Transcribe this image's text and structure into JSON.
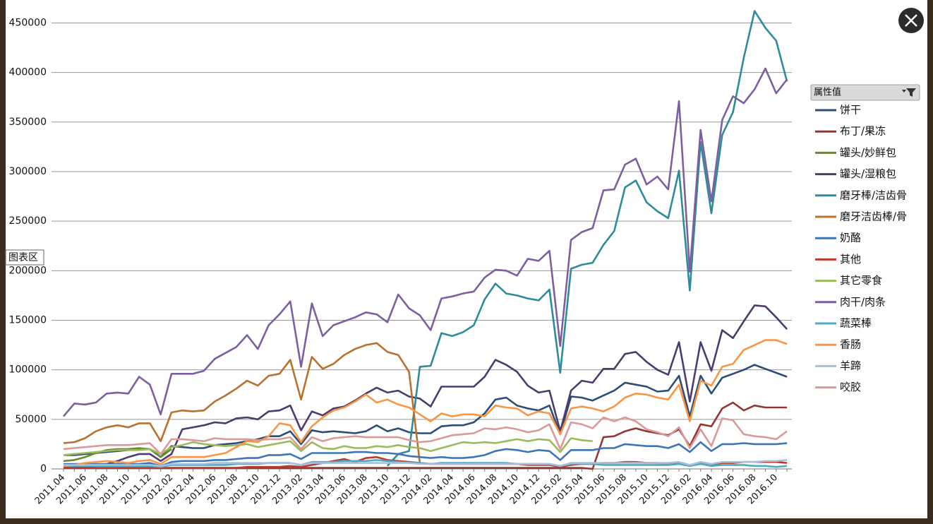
{
  "ui": {
    "legend_header": "属性值",
    "tooltip": "图表区"
  },
  "chart_data": {
    "type": "line",
    "categories": [
      "2011.04",
      null,
      "2011.06",
      null,
      "2011.08",
      null,
      "2011.10",
      null,
      "2011.12",
      null,
      "2012.02",
      null,
      "2012.04",
      null,
      "2012.06",
      null,
      "2012.08",
      null,
      "2012.10",
      null,
      "2012.12",
      null,
      "2013.02",
      null,
      "2013.04",
      null,
      "2013.06",
      null,
      "2013.08",
      null,
      "2013.10",
      null,
      "2013.12",
      null,
      "2014.02",
      null,
      "2014.04",
      null,
      "2014.06",
      null,
      "2014.08",
      null,
      "2014.10",
      null,
      "2014.12",
      null,
      "2015.02",
      null,
      "2015.04",
      null,
      "2015.06",
      null,
      "2015.08",
      null,
      "2015.10",
      null,
      "2015.12",
      null,
      "2016.02",
      null,
      "2016.04",
      null,
      "2016.06",
      null,
      "2016.08",
      null,
      "2016.10",
      null
    ],
    "ylim": [
      0,
      466000
    ],
    "yticks": [
      0,
      50000,
      100000,
      150000,
      200000,
      250000,
      300000,
      350000,
      400000,
      450000
    ],
    "grid": true,
    "legend": "right",
    "series": [
      {
        "name": "饼干",
        "color": "#2c4d75",
        "values": [
          14000,
          14000,
          15000,
          16000,
          17000,
          18000,
          19000,
          20000,
          20000,
          12000,
          23000,
          22000,
          21000,
          21000,
          24000,
          25000,
          26000,
          28000,
          30000,
          33000,
          33000,
          38000,
          25000,
          39000,
          37000,
          38000,
          37000,
          36000,
          38000,
          44000,
          38000,
          41000,
          37000,
          36000,
          36000,
          43000,
          44000,
          44000,
          47000,
          56000,
          70000,
          72000,
          64000,
          61000,
          59000,
          64000,
          35000,
          73000,
          72000,
          69000,
          74000,
          79000,
          87000,
          85000,
          83000,
          78000,
          79000,
          94000,
          53000,
          94000,
          76000,
          92000,
          96000,
          100000,
          105000,
          101000,
          97000,
          93000
        ]
      },
      {
        "name": "布丁/果冻",
        "color": "#943634",
        "values": [
          1000,
          1000,
          1000,
          1000,
          1000,
          1000,
          1000,
          1000,
          1000,
          1000,
          1000,
          1000,
          1000,
          1000,
          1000,
          1000,
          1000,
          1000,
          1000,
          1000,
          1000,
          1000,
          1000,
          1000,
          1000,
          1000,
          1000,
          1000,
          1000,
          1000,
          1000,
          1000,
          1000,
          1000,
          1000,
          1000,
          1000,
          1000,
          1000,
          1000,
          1000,
          1000,
          1000,
          1000,
          1000,
          1000,
          1000,
          1000,
          1000,
          0,
          32000,
          33000,
          38000,
          41000,
          38000,
          36000,
          34000,
          40000,
          23000,
          45000,
          43000,
          61000,
          67000,
          59000,
          64000,
          62000,
          62000,
          62000
        ]
      },
      {
        "name": "罐头/妙鲜包",
        "color": "#6a8a2c",
        "values": [
          8000,
          9000,
          12000,
          16000,
          19000,
          20000,
          20000,
          21000,
          20000,
          12000,
          20000,
          null,
          null,
          null,
          null,
          null,
          null,
          null,
          null,
          null,
          null,
          null,
          null,
          null,
          null,
          null,
          null,
          null,
          null,
          null,
          null,
          null,
          null,
          null,
          null,
          null,
          null,
          null,
          null,
          null,
          null,
          null,
          null,
          null,
          null,
          null,
          null,
          null,
          null,
          null,
          null,
          null,
          null,
          null,
          null,
          null,
          null,
          null,
          null,
          null,
          null,
          null,
          null,
          null,
          null,
          null,
          null,
          null
        ]
      },
      {
        "name": "罐头/湿粮包",
        "color": "#4d3b6e",
        "values": [
          1000,
          2000,
          2000,
          3000,
          5000,
          8000,
          12000,
          15000,
          15000,
          8000,
          15000,
          40000,
          42000,
          44000,
          47000,
          46000,
          51000,
          52000,
          50000,
          58000,
          59000,
          64000,
          39000,
          58000,
          54000,
          61000,
          63000,
          69000,
          76000,
          82000,
          77000,
          79000,
          73000,
          71000,
          63000,
          83000,
          83000,
          83000,
          83000,
          93000,
          110000,
          105000,
          98000,
          84000,
          77000,
          79000,
          38000,
          79000,
          89000,
          87000,
          101000,
          101000,
          116000,
          118000,
          108000,
          100000,
          95000,
          128000,
          68000,
          128000,
          99000,
          140000,
          132000,
          149000,
          165000,
          164000,
          153000,
          141000
        ]
      },
      {
        "name": "磨牙棒/洁齿骨",
        "color": "#2e8b9a",
        "values": [
          null,
          null,
          null,
          null,
          null,
          null,
          null,
          null,
          null,
          null,
          null,
          null,
          null,
          null,
          null,
          null,
          null,
          null,
          null,
          null,
          null,
          null,
          null,
          null,
          null,
          null,
          null,
          null,
          null,
          null,
          3000,
          15000,
          18000,
          103000,
          104000,
          137000,
          134000,
          138000,
          145000,
          171000,
          187000,
          177000,
          175000,
          172000,
          170000,
          181000,
          97000,
          202000,
          206000,
          208000,
          226000,
          240000,
          284000,
          291000,
          269000,
          260000,
          253000,
          301000,
          180000,
          330000,
          258000,
          337000,
          360000,
          415000,
          462000,
          445000,
          432000,
          391000
        ]
      },
      {
        "name": "磨牙洁齿棒/骨",
        "color": "#b8712f",
        "values": [
          26000,
          27000,
          31000,
          38000,
          42000,
          44000,
          42000,
          46000,
          46000,
          28000,
          57000,
          59000,
          58000,
          59000,
          68000,
          74000,
          81000,
          89000,
          84000,
          94000,
          96000,
          110000,
          70000,
          113000,
          101000,
          106000,
          115000,
          121000,
          125000,
          127000,
          118000,
          115000,
          98000,
          6000,
          null,
          null,
          null,
          null,
          null,
          null,
          null,
          null,
          null,
          null,
          null,
          null,
          null,
          null,
          null,
          null,
          null,
          null,
          null,
          null,
          null,
          null,
          null,
          null,
          null,
          null,
          null,
          null,
          null,
          null,
          null,
          null,
          null,
          null
        ]
      },
      {
        "name": "奶酪",
        "color": "#3c76b5",
        "values": [
          5000,
          5000,
          5000,
          5000,
          5000,
          5000,
          5000,
          5000,
          6000,
          3000,
          7000,
          8000,
          8000,
          8000,
          9000,
          9000,
          10000,
          11000,
          11000,
          14000,
          14000,
          15000,
          10000,
          16000,
          16000,
          16000,
          16000,
          17000,
          17000,
          16000,
          16000,
          15000,
          13000,
          12000,
          11000,
          12000,
          11000,
          11000,
          12000,
          14000,
          18000,
          20000,
          19000,
          17000,
          19000,
          18000,
          9000,
          19000,
          19000,
          19000,
          21000,
          21000,
          25000,
          24000,
          23000,
          23000,
          21000,
          25000,
          17000,
          27000,
          18000,
          25000,
          25000,
          26000,
          25000,
          25000,
          25000,
          26000
        ]
      },
      {
        "name": "其他",
        "color": "#c0392b",
        "values": [
          1000,
          1000,
          1000,
          1000,
          1000,
          1000,
          1000,
          1000,
          1000,
          1000,
          1000,
          1000,
          1000,
          1000,
          1000,
          1000,
          1000,
          2000,
          2000,
          2000,
          2000,
          3000,
          2000,
          4000,
          6000,
          8000,
          10000,
          7000,
          11000,
          12000,
          9000,
          8000,
          7000,
          6000,
          5000,
          5000,
          5000,
          5000,
          5000,
          5000,
          5000,
          5000,
          5000,
          4000,
          4000,
          4000,
          2000,
          4000,
          5000,
          5000,
          6000,
          6000,
          7000,
          7000,
          6000,
          6000,
          5000,
          6000,
          3000,
          6000,
          4000,
          6000,
          6000,
          7000,
          7000,
          7000,
          7000,
          6000
        ]
      },
      {
        "name": "其它零食",
        "color": "#9bbb59",
        "values": [
          14000,
          15000,
          16000,
          17000,
          18000,
          19000,
          19000,
          19000,
          20000,
          15000,
          22000,
          24000,
          27000,
          25000,
          24000,
          23000,
          24000,
          25000,
          22000,
          24000,
          26000,
          28000,
          18000,
          27000,
          21000,
          20000,
          23000,
          21000,
          21000,
          23000,
          22000,
          24000,
          22000,
          21000,
          18000,
          21000,
          24000,
          27000,
          26000,
          27000,
          26000,
          28000,
          30000,
          28000,
          30000,
          29000,
          17000,
          31000,
          29000,
          28000,
          null,
          null,
          null,
          null,
          null,
          null,
          null,
          null,
          null,
          null,
          null,
          null,
          null,
          null,
          null,
          null,
          null,
          null
        ]
      },
      {
        "name": "肉干/肉条",
        "color": "#7d5fa0",
        "values": [
          53000,
          66000,
          65000,
          67000,
          76000,
          77000,
          76000,
          93000,
          85000,
          55000,
          96000,
          96000,
          96000,
          99000,
          111000,
          117000,
          123000,
          135000,
          121000,
          145000,
          156000,
          169000,
          103000,
          167000,
          134000,
          145000,
          149000,
          153000,
          158000,
          156000,
          148000,
          176000,
          162000,
          155000,
          140000,
          172000,
          174000,
          177000,
          179000,
          193000,
          201000,
          200000,
          195000,
          212000,
          210000,
          220000,
          124000,
          231000,
          239000,
          243000,
          281000,
          282000,
          307000,
          313000,
          287000,
          295000,
          282000,
          371000,
          199000,
          342000,
          270000,
          352000,
          376000,
          369000,
          383000,
          404000,
          379000,
          393000
        ]
      },
      {
        "name": "蔬菜棒",
        "color": "#4bacc6",
        "values": [
          3000,
          3000,
          3000,
          3000,
          3000,
          3000,
          3000,
          3000,
          3000,
          2000,
          4000,
          4000,
          4000,
          4000,
          4000,
          4000,
          5000,
          5000,
          5000,
          6000,
          6000,
          6000,
          4000,
          7000,
          7000,
          7000,
          8000,
          8000,
          8000,
          9000,
          8000,
          7000,
          6000,
          6000,
          5000,
          6000,
          6000,
          6000,
          6000,
          6000,
          6000,
          6000,
          5000,
          5000,
          5000,
          5000,
          3000,
          5000,
          5000,
          5000,
          4000,
          4000,
          4000,
          4000,
          4000,
          4000,
          4000,
          5000,
          3000,
          5000,
          3000,
          4000,
          4000,
          4000,
          3000,
          3000,
          2000,
          3000
        ]
      },
      {
        "name": "香肠",
        "color": "#f79646",
        "values": [
          3000,
          4000,
          6000,
          7000,
          8000,
          7000,
          6000,
          8000,
          9000,
          5000,
          12000,
          12000,
          12000,
          12000,
          14000,
          16000,
          22000,
          28000,
          27000,
          33000,
          46000,
          44000,
          27000,
          43000,
          52000,
          59000,
          62000,
          68000,
          75000,
          67000,
          70000,
          65000,
          62000,
          55000,
          48000,
          56000,
          53000,
          55000,
          55000,
          53000,
          64000,
          62000,
          61000,
          54000,
          58000,
          56000,
          35000,
          61000,
          63000,
          61000,
          58000,
          63000,
          72000,
          76000,
          75000,
          72000,
          70000,
          85000,
          48000,
          89000,
          84000,
          103000,
          106000,
          120000,
          125000,
          130000,
          130000,
          126000
        ]
      },
      {
        "name": "羊蹄",
        "color": "#a9bfd9",
        "values": [
          4000,
          4000,
          4000,
          4000,
          4000,
          4000,
          4000,
          4000,
          4000,
          3000,
          5000,
          5000,
          5000,
          5000,
          6000,
          6000,
          6000,
          6000,
          6000,
          6000,
          6000,
          6000,
          4000,
          6000,
          6000,
          6000,
          6000,
          6000,
          6000,
          6000,
          6000,
          6000,
          6000,
          5000,
          5000,
          5000,
          5000,
          5000,
          5000,
          5000,
          5000,
          5000,
          5000,
          5000,
          5000,
          5000,
          3000,
          6000,
          6000,
          6000,
          6000,
          6000,
          6000,
          6000,
          6000,
          6000,
          6000,
          7000,
          4000,
          7000,
          5000,
          7000,
          7000,
          7000,
          7000,
          8000,
          8000,
          9000
        ]
      },
      {
        "name": "咬胶",
        "color": "#d99a9a",
        "values": [
          20000,
          21000,
          22000,
          23000,
          24000,
          24000,
          24000,
          25000,
          26000,
          15000,
          30000,
          30000,
          29000,
          28000,
          31000,
          30000,
          30000,
          30000,
          29000,
          30000,
          30000,
          32000,
          20000,
          32000,
          28000,
          31000,
          32000,
          33000,
          32000,
          32000,
          32000,
          32000,
          29000,
          27000,
          28000,
          31000,
          34000,
          35000,
          36000,
          41000,
          40000,
          42000,
          40000,
          37000,
          39000,
          45000,
          20000,
          47000,
          45000,
          41000,
          52000,
          48000,
          52000,
          48000,
          40000,
          37000,
          33000,
          42000,
          21000,
          40000,
          23000,
          51000,
          49000,
          35000,
          33000,
          32000,
          30000,
          38000
        ]
      }
    ]
  }
}
